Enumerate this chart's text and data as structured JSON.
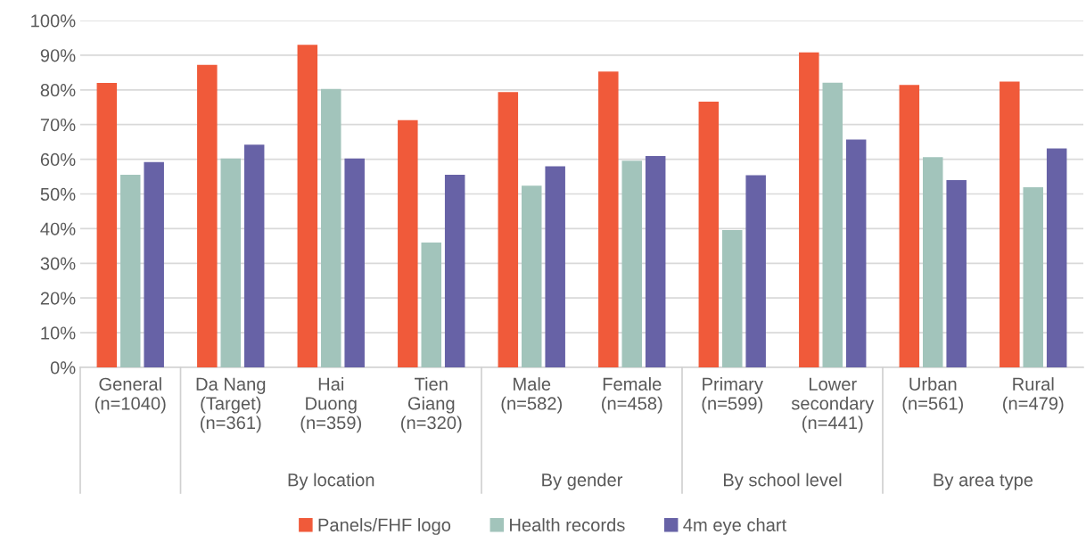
{
  "chart_data": {
    "type": "bar",
    "categories": [
      "General\n(n=1040)",
      "Da Nang\n(Target)\n(n=361)",
      "Hai\nDuong\n(n=359)",
      "Tien\nGiang\n(n=320)",
      "Male\n(n=582)",
      "Female\n(n=458)",
      "Primary\n(n=599)",
      "Lower\nsecondary\n(n=441)",
      "Urban\n(n=561)",
      "Rural\n(n=479)"
    ],
    "series": [
      {
        "name": "Panels/FHF logo",
        "color": "#f05a3a",
        "values": [
          82,
          87.2,
          93,
          71.3,
          79.4,
          85.3,
          76.6,
          90.8,
          81.4,
          82.4
        ]
      },
      {
        "name": "Health records",
        "color": "#a2c4bb",
        "values": [
          55.5,
          60.2,
          80.3,
          36,
          52.4,
          59.6,
          39.6,
          82.1,
          60.6,
          51.9
        ]
      },
      {
        "name": "4m eye chart",
        "color": "#6762a6",
        "values": [
          59.2,
          64.2,
          60.2,
          55.5,
          58,
          60.9,
          55.4,
          65.7,
          54,
          63.1
        ]
      }
    ],
    "ylim": [
      0,
      100
    ],
    "yticks": [
      {
        "value": 0,
        "label": "0%"
      },
      {
        "value": 10,
        "label": "10%"
      },
      {
        "value": 20,
        "label": "20%"
      },
      {
        "value": 30,
        "label": "30%"
      },
      {
        "value": 40,
        "label": "40%"
      },
      {
        "value": 50,
        "label": "50%"
      },
      {
        "value": 60,
        "label": "60%"
      },
      {
        "value": 70,
        "label": "70%"
      },
      {
        "value": 80,
        "label": "80%"
      },
      {
        "value": 90,
        "label": "90%"
      },
      {
        "value": 100,
        "label": "100%"
      }
    ],
    "grid": "y",
    "legend": "bottom",
    "annotations": [
      "By location",
      "By gender",
      "By school level",
      "By area type"
    ]
  }
}
